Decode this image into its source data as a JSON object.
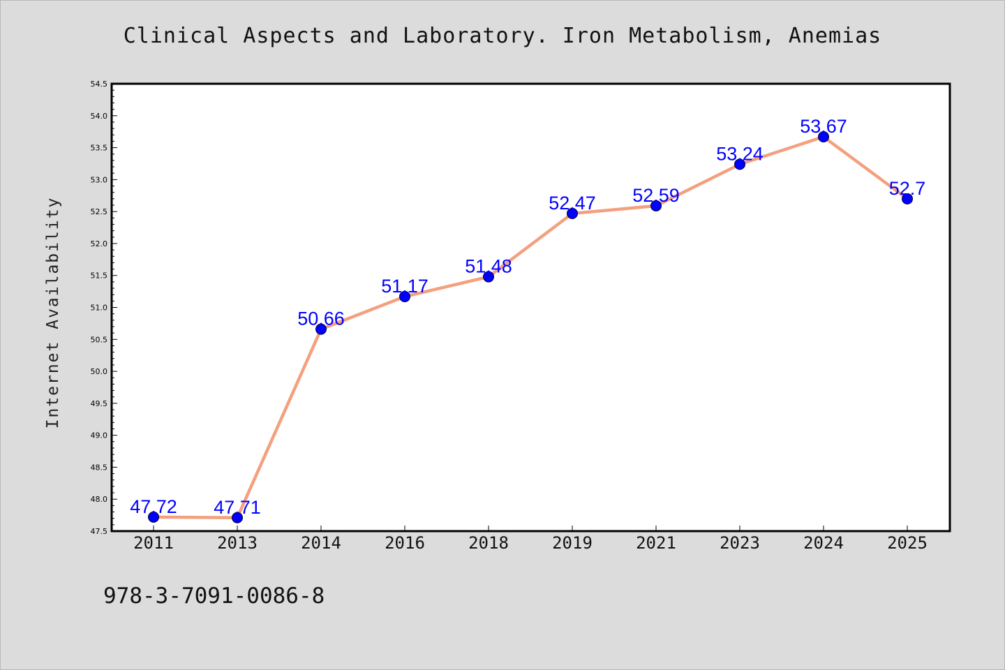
{
  "chart_data": {
    "type": "line",
    "title": "Clinical Aspects and Laboratory. Iron Metabolism, Anemias",
    "xlabel": "",
    "ylabel": "Internet Availability",
    "categories": [
      "2011",
      "2013",
      "2014",
      "2016",
      "2018",
      "2019",
      "2021",
      "2023",
      "2024",
      "2025"
    ],
    "series": [
      {
        "values": [
          47.72,
          47.71,
          50.66,
          51.17,
          51.48,
          52.47,
          52.59,
          53.24,
          53.67,
          52.7
        ],
        "labels": [
          "47.72",
          "47.71",
          "50.66",
          "51.17",
          "51.48",
          "52.47",
          "52.59",
          "53.24",
          "53.67",
          "52.7"
        ]
      }
    ],
    "ylim": [
      47.5,
      54.5
    ],
    "yticks": [
      "47.5",
      "48.0",
      "48.5",
      "49.0",
      "49.5",
      "50.0",
      "50.5",
      "51.0",
      "51.5",
      "52.0",
      "52.5",
      "53.0",
      "53.5",
      "54.0",
      "54.5"
    ],
    "grid": false,
    "colors": {
      "line": "#f4a07e",
      "marker": "#0000ff",
      "data_label": "#0000ff",
      "plot_background": "#ffffff",
      "page_background": "#dcdcdc"
    }
  },
  "footer": {
    "text": "978-3-7091-0086-8"
  }
}
